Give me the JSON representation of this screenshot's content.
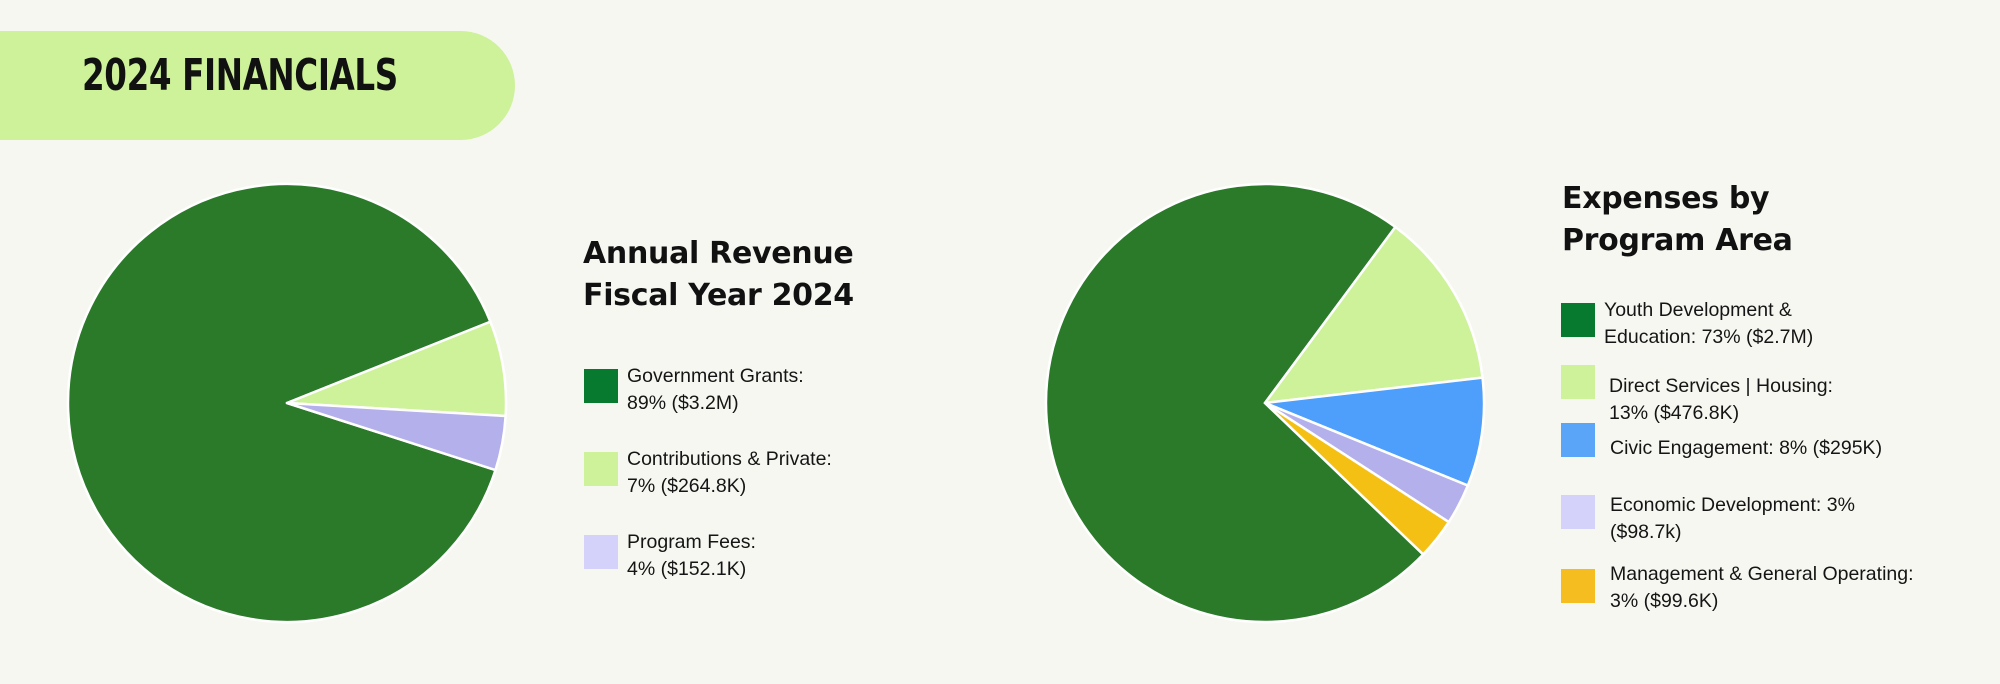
{
  "header": {
    "title": "2024 FINANCIALS"
  },
  "colors": {
    "background": "#f7f7f2",
    "banner": "#cdf299",
    "dark_green_slice": "#2a7a2a",
    "dark_green_swatch": "#077a30",
    "light_green": "#cdf299",
    "lavender_slice": "#b3b0ec",
    "lavender_swatch": "#d4d1fb",
    "blue": "#4d9ffb",
    "gold": "#f5c014"
  },
  "revenue": {
    "title_line1": "Annual Revenue",
    "title_line2": "Fiscal Year 2024",
    "legend": [
      {
        "text": "Government Grants:\n89% ($3.2M)",
        "color": "#077a30",
        "icon": "dark-green-square"
      },
      {
        "text": "Contributions & Private:\n7% ($264.8K)",
        "color": "#cdf299",
        "icon": "light-green-square"
      },
      {
        "text": "Program Fees:\n4% ($152.1K)",
        "color": "#d4d1fb",
        "icon": "lavender-square"
      }
    ]
  },
  "expenses": {
    "title_line1": "Expenses by",
    "title_line2": "Program Area",
    "legend": [
      {
        "text": "Youth Development &\nEducation: 73% ($2.7M)",
        "color": "#077a30",
        "icon": "dark-green-square"
      },
      {
        "text": "Direct Services | Housing:\n13% ($476.8K)",
        "color": "#cdf299",
        "icon": "light-green-square"
      },
      {
        "text": "Civic Engagement: 8% ($295K)",
        "color": "#5aa5f7",
        "icon": "blue-square"
      },
      {
        "text": "Economic Development: 3%\n($98.7k)",
        "color": "#d4d1fb",
        "icon": "lavender-square"
      },
      {
        "text": "Management & General Operating:\n3% ($99.6K)",
        "color": "#f5bd20",
        "icon": "gold-square"
      }
    ]
  },
  "chart_data": [
    {
      "type": "pie",
      "title": "Annual Revenue Fiscal Year 2024",
      "categories": [
        "Government Grants",
        "Contributions & Private",
        "Program Fees"
      ],
      "values": [
        89,
        7,
        4
      ],
      "amounts": [
        "$3.2M",
        "$264.8K",
        "$152.1K"
      ],
      "colors": [
        "#2a7a2a",
        "#cdf299",
        "#b3b0ec"
      ],
      "legend_position": "right"
    },
    {
      "type": "pie",
      "title": "Expenses by Program Area",
      "categories": [
        "Youth Development & Education",
        "Direct Services | Housing",
        "Civic Engagement",
        "Economic Development",
        "Management & General Operating"
      ],
      "values": [
        73,
        13,
        8,
        3,
        3
      ],
      "amounts": [
        "$2.7M",
        "$476.8K",
        "$295K",
        "$98.7k",
        "$99.6K"
      ],
      "colors": [
        "#2a7a2a",
        "#cdf299",
        "#4d9ffb",
        "#b3b0ec",
        "#f5c014"
      ],
      "legend_position": "right"
    }
  ]
}
